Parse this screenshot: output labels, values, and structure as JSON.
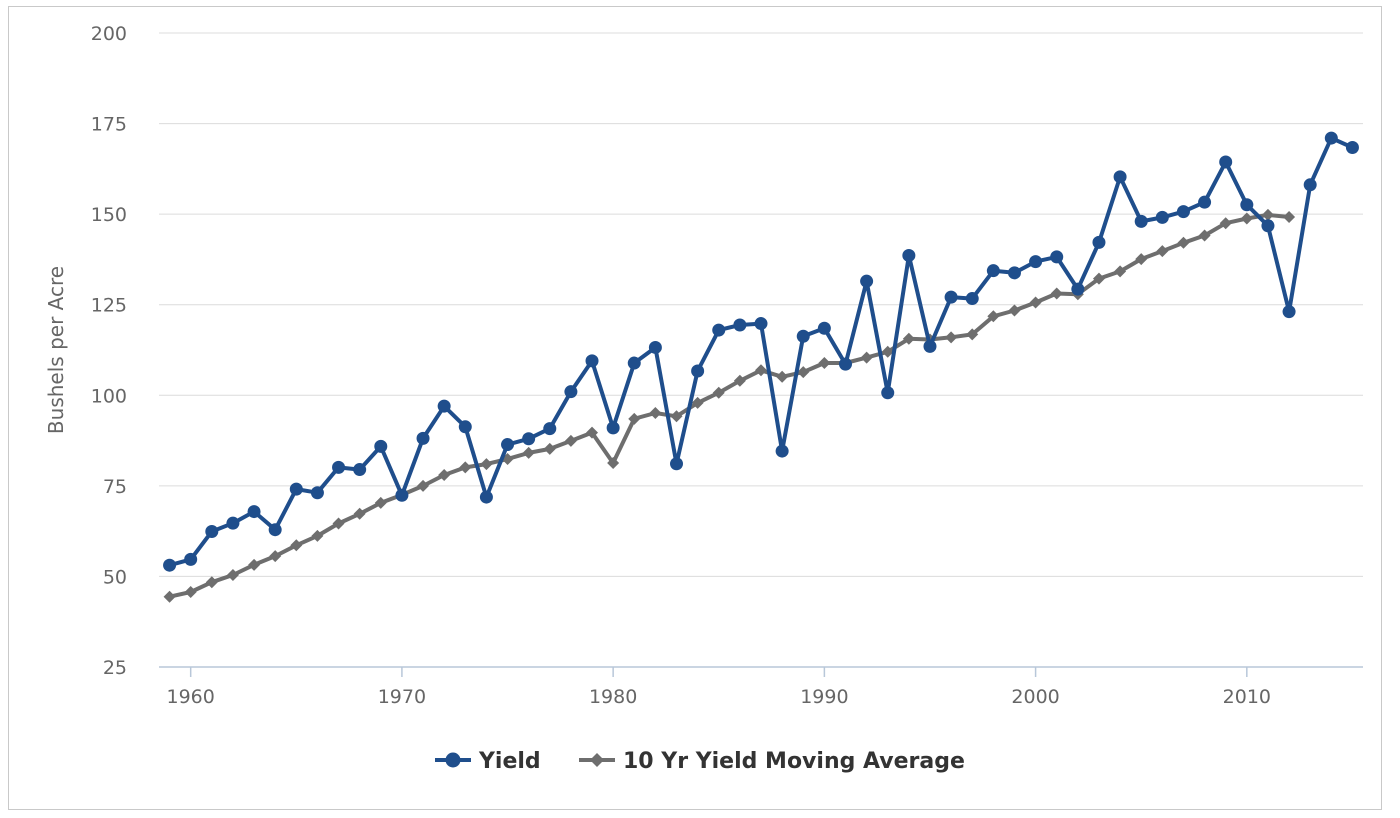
{
  "chart_data": {
    "type": "line",
    "title": "",
    "xlabel": "",
    "ylabel": "Bushels per Acre",
    "ylim": [
      25,
      200
    ],
    "xlim": [
      1958.5,
      2015.5
    ],
    "yticks": [
      25,
      50,
      75,
      100,
      125,
      150,
      175,
      200
    ],
    "xticks": [
      1960,
      1970,
      1980,
      1990,
      2000,
      2010
    ],
    "grid": "horizontal",
    "legend_position": "bottom",
    "series": [
      {
        "name": "Yield",
        "color": "#1f4e8c",
        "marker": "circle",
        "x": [
          1959,
          1960,
          1961,
          1962,
          1963,
          1964,
          1965,
          1966,
          1967,
          1968,
          1969,
          1970,
          1971,
          1972,
          1973,
          1974,
          1975,
          1976,
          1977,
          1978,
          1979,
          1980,
          1981,
          1982,
          1983,
          1984,
          1985,
          1986,
          1987,
          1988,
          1989,
          1990,
          1991,
          1992,
          1993,
          1994,
          1995,
          1996,
          1997,
          1998,
          1999,
          2000,
          2001,
          2002,
          2003,
          2004,
          2005,
          2006,
          2007,
          2008,
          2009,
          2010,
          2011,
          2012,
          2013,
          2014,
          2015
        ],
        "values": [
          53.1,
          54.7,
          62.4,
          64.7,
          67.9,
          62.9,
          74.1,
          73.1,
          80.1,
          79.5,
          85.9,
          72.4,
          88.1,
          97.0,
          91.3,
          71.9,
          86.4,
          88.0,
          90.8,
          101.0,
          109.5,
          91.0,
          108.9,
          113.2,
          81.1,
          106.7,
          118.0,
          119.4,
          119.8,
          84.6,
          116.3,
          118.5,
          108.6,
          131.5,
          100.7,
          138.6,
          113.5,
          127.1,
          126.7,
          134.4,
          133.8,
          136.9,
          138.2,
          129.3,
          142.2,
          160.3,
          148.0,
          149.1,
          150.7,
          153.3,
          164.4,
          152.6,
          146.8,
          123.1,
          158.1,
          171.0,
          168.4
        ]
      },
      {
        "name": "10 Yr Yield Moving Average",
        "color": "#6e6e6e",
        "marker": "diamond",
        "x": [
          1959,
          1960,
          1961,
          1962,
          1963,
          1964,
          1965,
          1966,
          1967,
          1968,
          1969,
          1970,
          1971,
          1972,
          1973,
          1974,
          1975,
          1976,
          1977,
          1978,
          1979,
          1980,
          1981,
          1982,
          1983,
          1984,
          1985,
          1986,
          1987,
          1988,
          1989,
          1990,
          1991,
          1992,
          1993,
          1994,
          1995,
          1996,
          1997,
          1998,
          1999,
          2000,
          2001,
          2002,
          2003,
          2004,
          2005,
          2006,
          2007,
          2008,
          2009,
          2010,
          2011,
          2012
        ],
        "values": [
          44.4,
          45.7,
          48.4,
          50.4,
          53.2,
          55.6,
          58.6,
          61.2,
          64.6,
          67.3,
          70.3,
          72.5,
          75.0,
          78.0,
          80.1,
          81.0,
          82.4,
          84.1,
          85.2,
          87.4,
          89.7,
          81.3,
          93.5,
          95.1,
          94.2,
          97.9,
          100.7,
          104.0,
          106.9,
          105.1,
          106.4,
          108.9,
          108.9,
          110.4,
          112.0,
          115.6,
          115.4,
          116.0,
          116.8,
          121.8,
          123.4,
          125.6,
          128.1,
          127.9,
          132.2,
          134.2,
          137.6,
          139.8,
          142.1,
          144.1,
          147.5,
          148.8,
          149.8,
          149.2
        ]
      }
    ]
  }
}
